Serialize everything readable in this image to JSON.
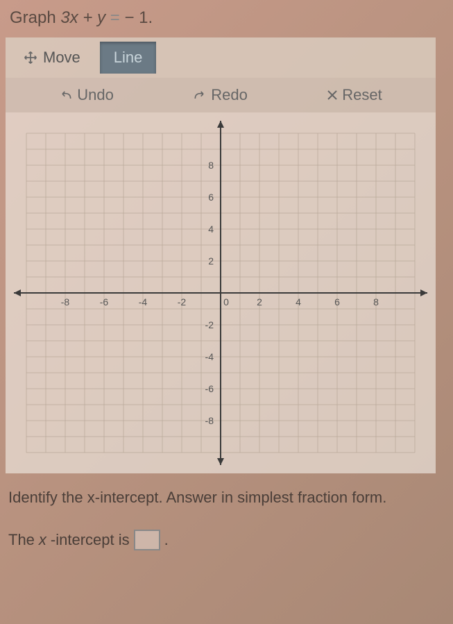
{
  "prompt": {
    "prefix": "Graph ",
    "equation_lhs": "3x + y",
    "equation_mid": " = ",
    "equation_rhs": "− 1",
    "suffix": "."
  },
  "tools": {
    "move": "Move",
    "line": "Line"
  },
  "actions": {
    "undo": "Undo",
    "redo": "Redo",
    "reset": "Reset"
  },
  "graph": {
    "type": "coordinate-grid",
    "xlim": [
      -10,
      10
    ],
    "ylim": [
      -10,
      10
    ],
    "xtick_labels": [
      "-8",
      "-6",
      "-4",
      "-2",
      "0",
      "2",
      "4",
      "6",
      "8"
    ],
    "ytick_labels_pos": [
      "2",
      "4",
      "6",
      "8"
    ],
    "ytick_labels_neg": [
      "-2",
      "-4",
      "-6",
      "-8"
    ],
    "tick_step": 2,
    "grid_color": "#b8a898",
    "axis_color": "#3a3a3a",
    "label_color": "#555",
    "label_fontsize": 14,
    "background": "rgba(240,232,225,0.35)"
  },
  "question": "Identify the x-intercept. Answer in simplest fraction form.",
  "answer_prefix": "The ",
  "answer_var": "x",
  "answer_mid": "-intercept is ",
  "answer_suffix": "."
}
